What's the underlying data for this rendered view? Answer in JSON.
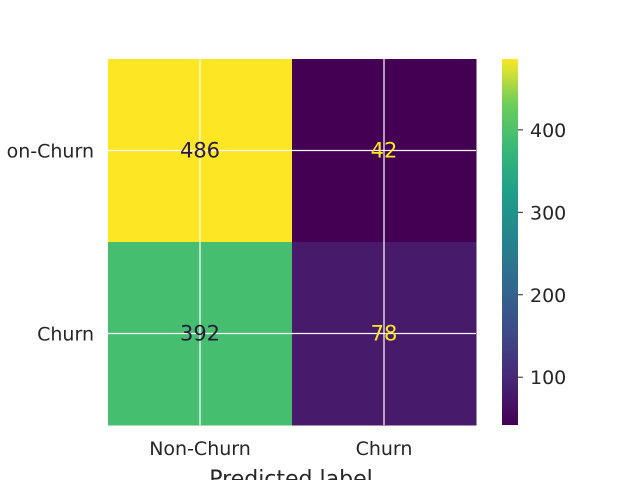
{
  "chart_data": {
    "type": "heatmap",
    "title": "",
    "xlabel": "Predicted label",
    "ylabel": "",
    "x_categories": [
      "Non-Churn",
      "Churn"
    ],
    "y_categories": [
      "Non-Churn",
      "Churn"
    ],
    "y_tick_labels_shown": [
      "on-Churn",
      "Churn"
    ],
    "values": [
      [
        486,
        42
      ],
      [
        392,
        78
      ]
    ],
    "colormap": "viridis",
    "colorbar": {
      "range": [
        42,
        486
      ],
      "ticks": [
        100,
        200,
        300,
        400
      ]
    },
    "grid": true,
    "colors": {
      "high_cell": "#fde725",
      "mid_cell": "#75d054",
      "low_cell": "#440154",
      "low2_cell": "#481d6f",
      "text_dark": "#2a1a3a",
      "text_light": "#fde725"
    }
  }
}
